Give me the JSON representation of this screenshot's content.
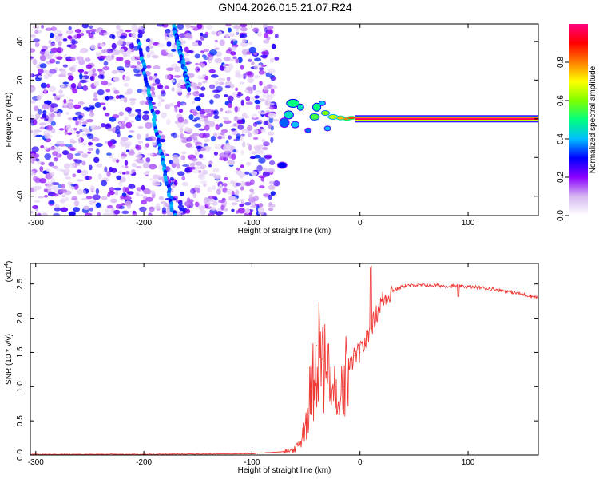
{
  "figure_title": "GN04.2026.015.21.07.R24",
  "chart_data": [
    {
      "type": "heatmap",
      "title": "GN04.2026.015.21.07.R24",
      "xlabel": "Height of straight line (km)",
      "ylabel": "Frequency (Hz)",
      "xlim": [
        -305,
        165
      ],
      "ylim": [
        -50,
        49
      ],
      "x_ticks": [
        -300,
        -200,
        -100,
        0,
        100
      ],
      "y_ticks": [
        -40,
        -20,
        0,
        20,
        40
      ],
      "colorbar": {
        "label": "Normalized spectral amplitude",
        "range": [
          0,
          1
        ],
        "ticks": [
          0.0,
          0.2,
          0.4,
          0.6,
          0.8
        ],
        "colors": [
          "#ffffff",
          "#d6b8f0",
          "#8b00ff",
          "#0000ff",
          "#00bfff",
          "#00ff7f",
          "#7fff00",
          "#ffff00",
          "#ff7f00",
          "#ff0000",
          "#ff0080"
        ]
      },
      "features": {
        "noise_region_x": [
          -305,
          -77
        ],
        "signal_line_frequency_hz": 0,
        "signal_line_x": [
          -5,
          165
        ],
        "streak_1": {
          "from": [
            -205,
            40
          ],
          "to": [
            -172,
            -50
          ]
        },
        "streak_2": {
          "from": [
            -172,
            48
          ],
          "to": [
            -158,
            15
          ]
        },
        "transition_region_x": [
          -80,
          -5
        ]
      },
      "grid": false
    },
    {
      "type": "line",
      "xlabel": "Height of straight line (km)",
      "ylabel": "SNR (10 * v/v)",
      "y_multiplier": "(x10",
      "y_multiplier_exp": "4",
      "y_multiplier_close": ")",
      "xlim": [
        -305,
        165
      ],
      "ylim": [
        0,
        2.8
      ],
      "x_ticks": [
        -300,
        -200,
        -100,
        0,
        100
      ],
      "y_ticks": [
        0.0,
        0.5,
        1.0,
        1.5,
        2.0,
        2.5
      ],
      "series": [
        {
          "color": "#ef3b36",
          "x": [
            -305,
            -200,
            -100,
            -70,
            -60,
            -55,
            -50,
            -45,
            -40,
            -35,
            -30,
            -25,
            -20,
            -15,
            -10,
            -5,
            0,
            5,
            10,
            15,
            20,
            30,
            40,
            50,
            60,
            70,
            80,
            90,
            100,
            110,
            120,
            130,
            140,
            150,
            165
          ],
          "y": [
            0.01,
            0.01,
            0.02,
            0.05,
            0.08,
            0.2,
            0.5,
            1.0,
            1.6,
            1.4,
            1.2,
            1.0,
            0.6,
            1.0,
            1.25,
            1.45,
            1.5,
            1.65,
            1.85,
            2.05,
            2.25,
            2.4,
            2.47,
            2.48,
            2.48,
            2.48,
            2.47,
            2.47,
            2.46,
            2.45,
            2.43,
            2.41,
            2.38,
            2.35,
            2.3
          ]
        }
      ],
      "grid": false
    }
  ]
}
